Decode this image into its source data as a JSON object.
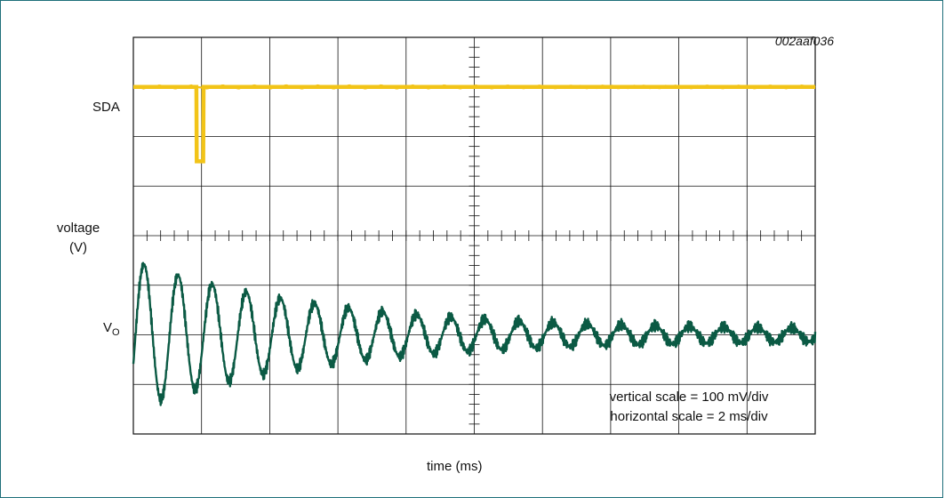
{
  "figure_id": "002aaf036",
  "labels": {
    "sda": "SDA",
    "ylabel_line1": "voltage",
    "ylabel_line2": "(V)",
    "vo_main": "V",
    "vo_sub": "O",
    "xlabel": "time (ms)",
    "note_vertical": "vertical scale = 100 mV/div",
    "note_horizontal": "horizontal scale = 2 ms/div"
  },
  "colors": {
    "sda_trace": "#f2c418",
    "vo_trace": "#0b5a44",
    "grid": "#111111",
    "frame": "#1f6f7a"
  },
  "chart_data": {
    "type": "line",
    "xlabel": "time (ms)",
    "ylabel": "voltage (V)",
    "grid": true,
    "divisions": {
      "x": 10,
      "y": 8
    },
    "horizontal_scale_ms_per_div": 2,
    "vertical_scale_mV_per_div": 100,
    "xlim": [
      0,
      20
    ],
    "series": [
      {
        "name": "SDA",
        "x": [
          0,
          1.85,
          1.86,
          2.05,
          2.06,
          20
        ],
        "y_div": [
          7.0,
          7.0,
          5.5,
          5.5,
          7.0,
          7.0
        ]
      },
      {
        "name": "V",
        "envelope_mV": {
          "start": 150,
          "end": 10
        },
        "period_ms": 1.0,
        "center_div": 2.0,
        "x": [
          0,
          0.5,
          1.0,
          1.5,
          2.0,
          2.5,
          3.0,
          3.5,
          4.0,
          4.5,
          5.0,
          6.0,
          7.0,
          8.0,
          9.0,
          10.0,
          12.0,
          14.0,
          16.0,
          18.0,
          20.0
        ],
        "y_mV": [
          -60,
          140,
          -140,
          145,
          -150,
          140,
          -110,
          130,
          -100,
          110,
          -90,
          -80,
          -70,
          -60,
          -50,
          40,
          30,
          25,
          15,
          12,
          10
        ]
      }
    ]
  }
}
